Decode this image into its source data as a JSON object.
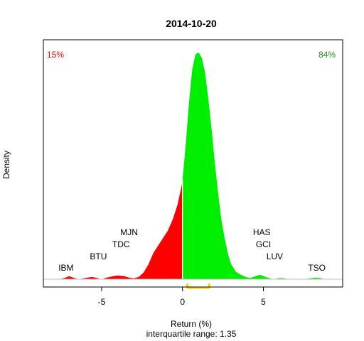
{
  "chart_data": {
    "type": "area",
    "title": "2014-10-20",
    "xlabel": "Return (%)",
    "ylabel": "Density",
    "subtitle": "interquartile range: 1.35",
    "xlim": [
      -8.6,
      9.9
    ],
    "ylim": [
      0,
      0.62
    ],
    "x_ticks": [
      -5,
      0,
      5
    ],
    "x_tick_labels": [
      "-5",
      "0",
      "5"
    ],
    "grid": false,
    "left_percent": "15%",
    "right_percent": "84%",
    "colors": {
      "negative": "#ff0000",
      "positive": "#00ee00",
      "iqr": "#ffcc00",
      "baseline": "#bebebe",
      "left_percent": "#ff0000",
      "right_percent": "#228b22"
    },
    "density_curve": {
      "x": [
        -7.6,
        -7.3,
        -7.0,
        -6.7,
        -6.4,
        -6.0,
        -5.6,
        -5.3,
        -5.0,
        -4.7,
        -4.3,
        -4.0,
        -3.6,
        -3.3,
        -3.0,
        -2.7,
        -2.4,
        -2.1,
        -1.8,
        -1.5,
        -1.2,
        -0.9,
        -0.6,
        -0.3,
        -0.05,
        0.0,
        0.2,
        0.4,
        0.6,
        0.8,
        1.0,
        1.2,
        1.4,
        1.6,
        1.8,
        2.0,
        2.2,
        2.4,
        2.6,
        2.8,
        3.0,
        3.3,
        3.6,
        3.9,
        4.2,
        4.5,
        4.8,
        5.1,
        5.4,
        5.7,
        6.0,
        6.3,
        6.6,
        7.0,
        7.5,
        7.9,
        8.2,
        8.5,
        8.8,
        9.0
      ],
      "y": [
        0.0,
        0.003,
        0.008,
        0.003,
        0.0,
        0.003,
        0.006,
        0.003,
        0.0,
        0.004,
        0.008,
        0.01,
        0.008,
        0.004,
        0.002,
        0.006,
        0.018,
        0.04,
        0.07,
        0.09,
        0.11,
        0.13,
        0.16,
        0.2,
        0.25,
        0.265,
        0.36,
        0.47,
        0.56,
        0.6,
        0.605,
        0.59,
        0.55,
        0.48,
        0.4,
        0.31,
        0.23,
        0.16,
        0.11,
        0.07,
        0.04,
        0.02,
        0.012,
        0.006,
        0.003,
        0.008,
        0.012,
        0.006,
        0.002,
        0.0,
        0.003,
        0.002,
        0.0,
        0.0,
        0.0,
        0.002,
        0.004,
        0.003,
        0.0,
        0.0
      ]
    },
    "iqr": [
      0.3,
      1.65
    ],
    "annotations": [
      {
        "label": "IBM",
        "x": -7.2,
        "tier": 1
      },
      {
        "label": "BTU",
        "x": -5.2,
        "tier": 2
      },
      {
        "label": "TDC",
        "x": -3.8,
        "tier": 3
      },
      {
        "label": "MJN",
        "x": -3.3,
        "tier": 4
      },
      {
        "label": "HAS",
        "x": 4.9,
        "tier": 4
      },
      {
        "label": "GCI",
        "x": 5.0,
        "tier": 3
      },
      {
        "label": "LUV",
        "x": 5.7,
        "tier": 2
      },
      {
        "label": "TSO",
        "x": 8.3,
        "tier": 1
      }
    ]
  }
}
